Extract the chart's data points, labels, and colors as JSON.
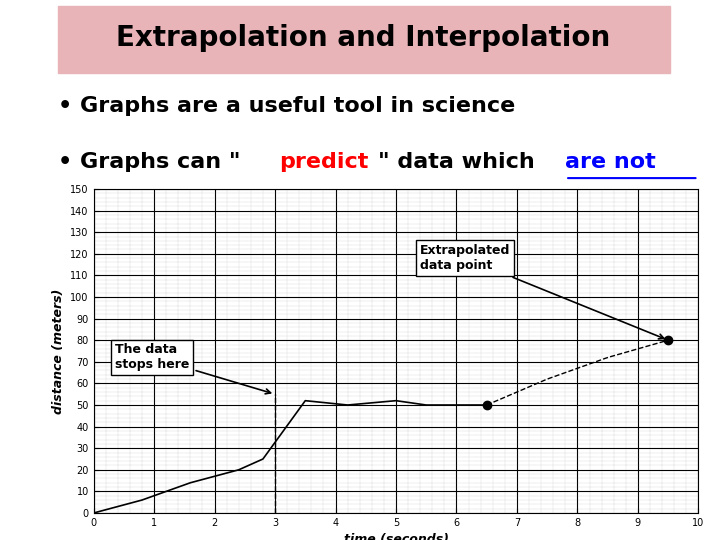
{
  "title": "Extrapolation and Interpolation",
  "title_bg": "#e8b4b8",
  "bullet1": "• Graphs are a useful tool in science",
  "xlabel": "time (seconds)",
  "ylabel": "distance (meters)",
  "xlim": [
    0,
    10
  ],
  "ylim": [
    0,
    150
  ],
  "xticks": [
    0,
    1,
    2,
    3,
    4,
    5,
    6,
    7,
    8,
    9,
    10
  ],
  "yticks": [
    0,
    10,
    20,
    30,
    40,
    50,
    60,
    70,
    80,
    90,
    100,
    110,
    120,
    130,
    140,
    150
  ],
  "data_x": [
    0,
    0.4,
    0.8,
    1.2,
    1.6,
    2.0,
    2.4,
    2.8,
    3.5,
    4.2,
    5.0,
    5.5,
    6.5
  ],
  "data_y": [
    0,
    3,
    6,
    10,
    14,
    17,
    20,
    25,
    52,
    50,
    52,
    50,
    50
  ],
  "extrap_x": 9.5,
  "extrap_y": 80,
  "bg_color": "#ffffff",
  "annot_box1_text": "The data\nstops here",
  "annot_box2_text": "Extrapolated\ndata point",
  "font_size_title": 20,
  "font_size_bullets": 16,
  "font_size_annot": 9
}
